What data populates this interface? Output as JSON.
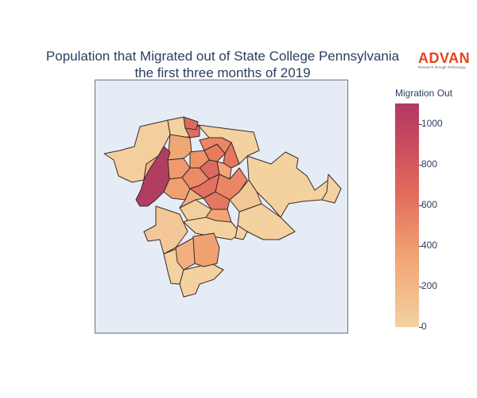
{
  "title": {
    "line1": "Population that Migrated out of State College Pennsylvania",
    "line2": "the first three months of 2019"
  },
  "logo": {
    "text": "ADVAN",
    "tagline": "Research through Technology",
    "color": "#e8431c"
  },
  "colorbar": {
    "title": "Migration Out",
    "ticks": [
      "0",
      "200",
      "400",
      "600",
      "800",
      "1000"
    ],
    "range": [
      0,
      1100
    ],
    "colors": [
      "#f3d2a0",
      "#f2a676",
      "#e26b5b",
      "#c4475e",
      "#b23a63"
    ]
  },
  "map": {
    "background": "#e5ecf6",
    "border_color": "#6b7380",
    "boundary_color": "#3a2a2a"
  },
  "chart_data": {
    "type": "choropleth",
    "title": "Population that Migrated out of State College Pennsylvania the first three months of 2019",
    "colorbar_title": "Migration Out",
    "colorscale_range": [
      0,
      1100
    ],
    "regions_value_estimates": [
      1080,
      820,
      750,
      650,
      600,
      560,
      520,
      450,
      420,
      380,
      350,
      300,
      250,
      220,
      200,
      180,
      150,
      120,
      90,
      60,
      40,
      20
    ]
  }
}
